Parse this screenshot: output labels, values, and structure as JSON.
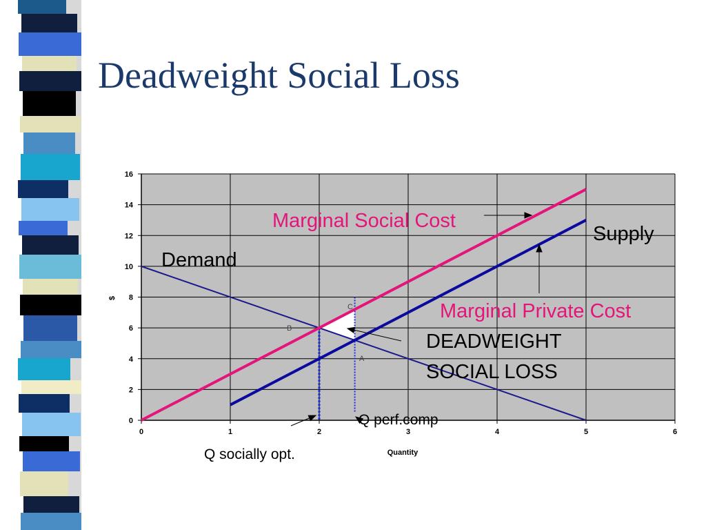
{
  "slide": {
    "title": "Deadweight Social Loss",
    "strip_colors": [
      "#1c5a8c",
      "#0f1f3d",
      "#000000",
      "#3a6ad6",
      "#4a8cc4",
      "#e3e1b8",
      "#18a6cf",
      "#87c4f0",
      "#0d2f66",
      "#6bbcd8",
      "#2c58a8",
      "#f0edc6"
    ]
  },
  "chart_data": {
    "type": "line",
    "title": "",
    "xlabel": "Quantity",
    "ylabel": "$",
    "xlim": [
      0,
      6
    ],
    "ylim": [
      0,
      16
    ],
    "x_ticks": [
      "0",
      "1",
      "2",
      "3",
      "4",
      "5",
      "6"
    ],
    "y_ticks": [
      "0",
      "2",
      "4",
      "6",
      "8",
      "10",
      "12",
      "14",
      "16"
    ],
    "grid": true,
    "series": [
      {
        "name": "Demand",
        "color": "#1a1a8c",
        "points": [
          [
            0,
            10
          ],
          [
            5,
            0
          ]
        ]
      },
      {
        "name": "Supply",
        "color": "#0a0a9e",
        "points": [
          [
            1,
            1
          ],
          [
            5,
            13
          ]
        ]
      },
      {
        "name": "Marginal Social Cost",
        "color": "#e4157a",
        "points": [
          [
            0,
            0
          ],
          [
            5,
            15
          ]
        ]
      }
    ],
    "annotations": {
      "msc": "Marginal Social Cost",
      "supply": "Supply",
      "mpc": "Marginal Private Cost",
      "demand": "Demand",
      "dwl_line1": "DEADWEIGHT",
      "dwl_line2": "SOCIAL LOSS",
      "q_perf": "Q perf.comp",
      "q_soc": "Q socially opt.",
      "point_a": "A",
      "point_b": "B",
      "point_c": "C"
    },
    "q_socially_optimal": 2,
    "q_perfect_competition": 2.4,
    "deadweight_triangle": [
      [
        2,
        6
      ],
      [
        2.4,
        7.2
      ],
      [
        2.4,
        5.2
      ]
    ],
    "annotation_color": "#e4157a"
  }
}
